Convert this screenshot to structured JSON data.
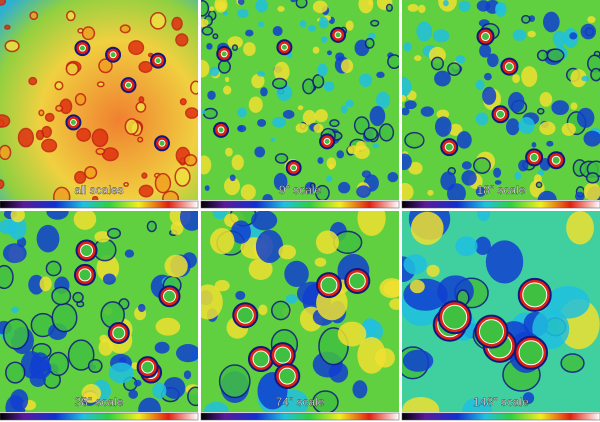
{
  "panels": [
    {
      "label": "all scales"
    },
    {
      "label": "9\" scale"
    },
    {
      "label": "18\" scale"
    },
    {
      "label": "38\" scale"
    },
    {
      "label": "74\" scale"
    },
    {
      "label": "148\" scale"
    }
  ]
}
